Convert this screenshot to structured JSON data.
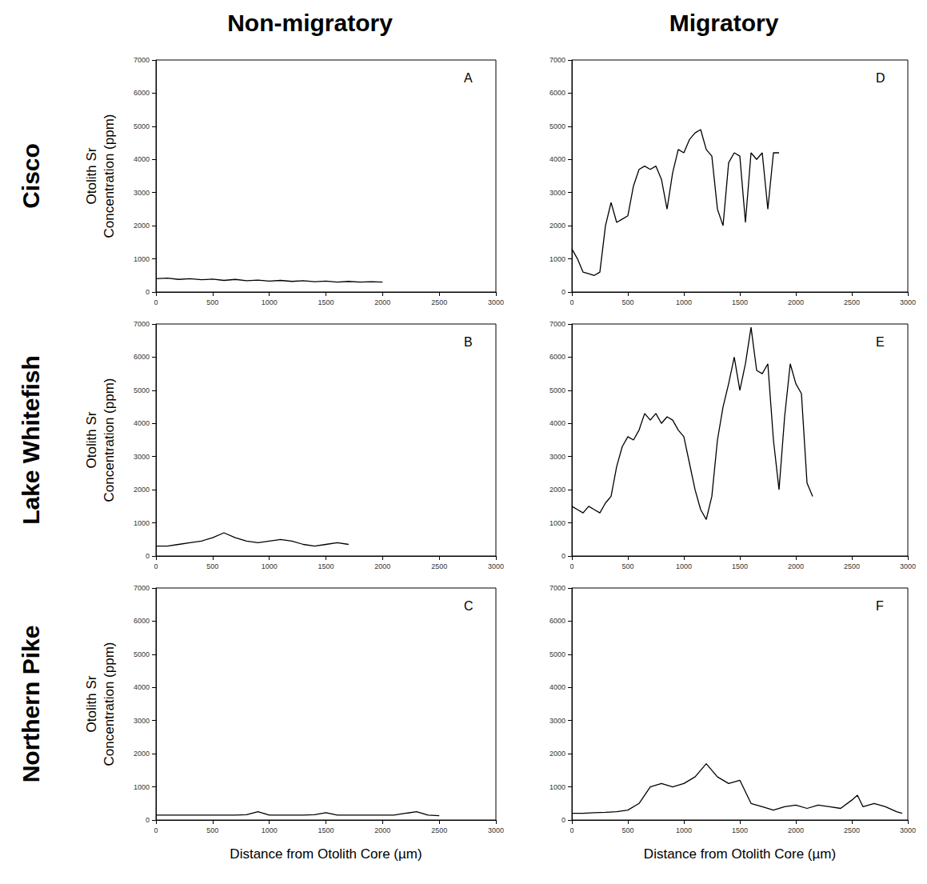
{
  "row_labels": [
    "Cisco",
    "Lake Whitefish",
    "Northern Pike"
  ],
  "column_labels": [
    "Non-migratory",
    "Migratory"
  ],
  "chart_data": [
    {
      "type": "line",
      "title": "A",
      "row": 0,
      "column": 0,
      "y_label": "Otolith Sr Concentration (ppm)",
      "x": [
        0,
        100,
        200,
        300,
        400,
        500,
        600,
        700,
        800,
        900,
        1000,
        1100,
        1200,
        1300,
        1400,
        1500,
        1600,
        1700,
        1800,
        1900,
        2000
      ],
      "values": [
        400,
        420,
        380,
        400,
        370,
        390,
        350,
        380,
        340,
        360,
        330,
        350,
        320,
        340,
        310,
        330,
        300,
        320,
        300,
        310,
        300
      ],
      "color": "#000000",
      "xlim": [
        0,
        3000
      ],
      "xticks": [
        0,
        500,
        1000,
        1500,
        2000,
        2500,
        3000
      ],
      "ylim": [
        0,
        7000
      ],
      "yticks": [
        0,
        1000,
        2000,
        3000,
        4000,
        5000,
        6000,
        7000
      ],
      "grid": false
    },
    {
      "type": "line",
      "title": "B",
      "row": 1,
      "column": 0,
      "y_label": "Otolith Sr Concentration (ppm)",
      "x": [
        0,
        100,
        200,
        300,
        400,
        500,
        600,
        700,
        800,
        900,
        1000,
        1100,
        1200,
        1300,
        1400,
        1500,
        1600,
        1700
      ],
      "values": [
        300,
        300,
        350,
        400,
        450,
        550,
        700,
        550,
        450,
        400,
        450,
        500,
        450,
        350,
        300,
        350,
        400,
        350
      ],
      "color": "#000000",
      "xlim": [
        0,
        3000
      ],
      "xticks": [
        0,
        500,
        1000,
        1500,
        2000,
        2500,
        3000
      ],
      "ylim": [
        0,
        7000
      ],
      "yticks": [
        0,
        1000,
        2000,
        3000,
        4000,
        5000,
        6000,
        7000
      ],
      "grid": false
    },
    {
      "type": "line",
      "title": "C",
      "row": 2,
      "column": 0,
      "y_label": "Otolith Sr Concentration (ppm)",
      "x_label": "Distance from Otolith Core (µm)",
      "x": [
        0,
        100,
        200,
        300,
        400,
        500,
        600,
        700,
        800,
        900,
        1000,
        1100,
        1200,
        1300,
        1400,
        1500,
        1600,
        1700,
        1800,
        1900,
        2000,
        2100,
        2200,
        2300,
        2400,
        2500
      ],
      "values": [
        150,
        150,
        150,
        150,
        150,
        150,
        150,
        150,
        160,
        250,
        150,
        150,
        150,
        150,
        160,
        220,
        150,
        150,
        150,
        150,
        150,
        150,
        200,
        250,
        150,
        130
      ],
      "color": "#000000",
      "xlim": [
        0,
        3000
      ],
      "xticks": [
        0,
        500,
        1000,
        1500,
        2000,
        2500,
        3000
      ],
      "ylim": [
        0,
        7000
      ],
      "yticks": [
        0,
        1000,
        2000,
        3000,
        4000,
        5000,
        6000,
        7000
      ],
      "grid": false
    },
    {
      "type": "line",
      "title": "D",
      "row": 0,
      "column": 1,
      "x": [
        0,
        50,
        100,
        150,
        200,
        250,
        300,
        350,
        400,
        450,
        500,
        550,
        600,
        650,
        700,
        750,
        800,
        850,
        900,
        950,
        1000,
        1050,
        1100,
        1150,
        1200,
        1250,
        1300,
        1350,
        1400,
        1450,
        1500,
        1550,
        1600,
        1650,
        1700,
        1750,
        1800,
        1850
      ],
      "values": [
        1300,
        1000,
        600,
        550,
        500,
        600,
        2000,
        2700,
        2100,
        2200,
        2300,
        3200,
        3700,
        3800,
        3700,
        3800,
        3400,
        2500,
        3600,
        4300,
        4200,
        4600,
        4800,
        4900,
        4300,
        4100,
        2500,
        2000,
        3900,
        4200,
        4100,
        2100,
        4200,
        4000,
        4200,
        2500,
        4200,
        4200
      ],
      "color": "#000000",
      "xlim": [
        0,
        3000
      ],
      "xticks": [
        0,
        500,
        1000,
        1500,
        2000,
        2500,
        3000
      ],
      "ylim": [
        0,
        7000
      ],
      "yticks": [
        0,
        1000,
        2000,
        3000,
        4000,
        5000,
        6000,
        7000
      ],
      "grid": false
    },
    {
      "type": "line",
      "title": "E",
      "row": 1,
      "column": 1,
      "x": [
        0,
        50,
        100,
        150,
        200,
        250,
        300,
        350,
        400,
        450,
        500,
        550,
        600,
        650,
        700,
        750,
        800,
        850,
        900,
        950,
        1000,
        1050,
        1100,
        1150,
        1200,
        1250,
        1300,
        1350,
        1400,
        1450,
        1500,
        1550,
        1600,
        1650,
        1700,
        1750,
        1800,
        1850,
        1900,
        1950,
        2000,
        2050,
        2100,
        2150
      ],
      "values": [
        1500,
        1400,
        1300,
        1500,
        1400,
        1300,
        1600,
        1800,
        2700,
        3300,
        3600,
        3500,
        3800,
        4300,
        4100,
        4300,
        4000,
        4200,
        4100,
        3800,
        3600,
        2800,
        2000,
        1400,
        1100,
        1800,
        3500,
        4500,
        5200,
        6000,
        5000,
        5800,
        6900,
        5600,
        5500,
        5800,
        3500,
        2000,
        4200,
        5800,
        5200,
        4900,
        2200,
        1800
      ],
      "color": "#000000",
      "xlim": [
        0,
        3000
      ],
      "xticks": [
        0,
        500,
        1000,
        1500,
        2000,
        2500,
        3000
      ],
      "ylim": [
        0,
        7000
      ],
      "yticks": [
        0,
        1000,
        2000,
        3000,
        4000,
        5000,
        6000,
        7000
      ],
      "grid": false
    },
    {
      "type": "line",
      "title": "F",
      "row": 2,
      "column": 1,
      "x_label": "Distance from Otolith Core (µm)",
      "x": [
        0,
        100,
        200,
        300,
        400,
        500,
        600,
        700,
        800,
        900,
        1000,
        1100,
        1200,
        1300,
        1400,
        1500,
        1600,
        1700,
        1800,
        1900,
        2000,
        2100,
        2200,
        2300,
        2400,
        2500,
        2550,
        2600,
        2700,
        2800,
        2900,
        2950
      ],
      "values": [
        200,
        200,
        220,
        230,
        250,
        300,
        500,
        1000,
        1100,
        1000,
        1100,
        1300,
        1700,
        1300,
        1100,
        1200,
        500,
        400,
        300,
        400,
        450,
        350,
        450,
        400,
        350,
        600,
        750,
        400,
        500,
        400,
        250,
        200
      ],
      "color": "#000000",
      "xlim": [
        0,
        3000
      ],
      "xticks": [
        0,
        500,
        1000,
        1500,
        2000,
        2500,
        3000
      ],
      "ylim": [
        0,
        7000
      ],
      "yticks": [
        0,
        1000,
        2000,
        3000,
        4000,
        5000,
        6000,
        7000
      ],
      "grid": false
    }
  ]
}
